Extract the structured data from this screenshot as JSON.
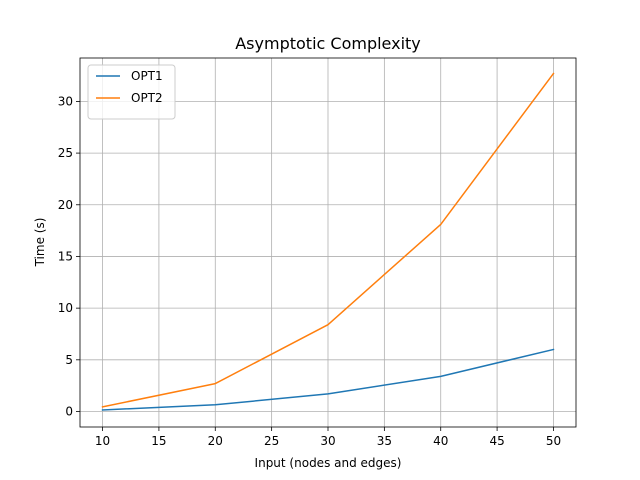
{
  "chart_data": {
    "type": "line",
    "title": "Asymptotic Complexity",
    "xlabel": "Input (nodes and edges)",
    "ylabel": "Time (s)",
    "x": [
      10,
      20,
      30,
      40,
      50
    ],
    "series": [
      {
        "name": "OPT1",
        "color": "#1f77b4",
        "values": [
          0.15,
          0.65,
          1.7,
          3.4,
          6.0
        ]
      },
      {
        "name": "OPT2",
        "color": "#ff7f0e",
        "values": [
          0.45,
          2.7,
          8.4,
          18.1,
          32.7
        ]
      }
    ],
    "xlim": [
      8,
      52
    ],
    "ylim": [
      -1.5,
      34.2
    ],
    "xticks": [
      10,
      15,
      20,
      25,
      30,
      35,
      40,
      45,
      50
    ],
    "yticks": [
      0,
      5,
      10,
      15,
      20,
      25,
      30
    ],
    "grid": true,
    "legend_position": "upper-left"
  }
}
